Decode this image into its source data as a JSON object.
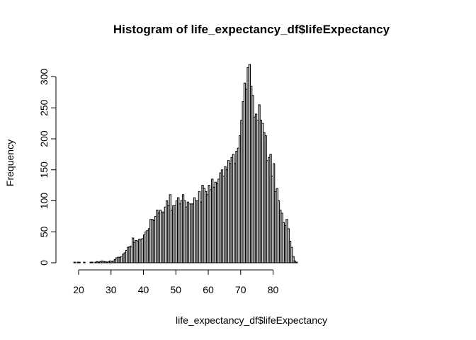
{
  "chart_data": {
    "type": "bar",
    "title": "Histogram of life_expectancy_df$lifeExpectancy",
    "xlabel": "life_expectancy_df$lifeExpectancy",
    "ylabel": "Frequency",
    "bin_width": 0.5,
    "x_start": 18.5,
    "xlim": [
      17,
      86
    ],
    "ylim": [
      0,
      320
    ],
    "x_ticks": [
      20,
      30,
      40,
      50,
      60,
      70,
      80
    ],
    "y_ticks": [
      0,
      50,
      100,
      150,
      200,
      250,
      300
    ],
    "bar_fill": "#d3d3d3",
    "grid": false,
    "values": [
      1,
      0,
      1,
      1,
      0,
      0,
      1,
      0,
      0,
      0,
      1,
      1,
      0,
      1,
      2,
      1,
      2,
      3,
      2,
      2,
      1,
      2,
      3,
      2,
      3,
      5,
      8,
      9,
      9,
      10,
      14,
      16,
      20,
      25,
      26,
      27,
      40,
      33,
      36,
      35,
      38,
      38,
      39,
      45,
      50,
      52,
      55,
      70,
      70,
      68,
      75,
      85,
      80,
      85,
      82,
      82,
      90,
      100,
      92,
      110,
      85,
      92,
      92,
      100,
      105,
      95,
      100,
      110,
      100,
      90,
      98,
      95,
      95,
      95,
      105,
      100,
      100,
      115,
      98,
      125,
      120,
      115,
      110,
      125,
      118,
      135,
      122,
      130,
      128,
      135,
      145,
      150,
      140,
      155,
      150,
      165,
      160,
      170,
      175,
      160,
      180,
      185,
      205,
      230,
      260,
      290,
      280,
      315,
      320,
      285,
      270,
      235,
      240,
      230,
      255,
      230,
      225,
      210,
      205,
      165,
      170,
      175,
      140,
      160,
      115,
      120,
      100,
      85,
      80,
      65,
      60,
      70,
      55,
      35,
      25,
      10,
      3,
      1
    ]
  }
}
